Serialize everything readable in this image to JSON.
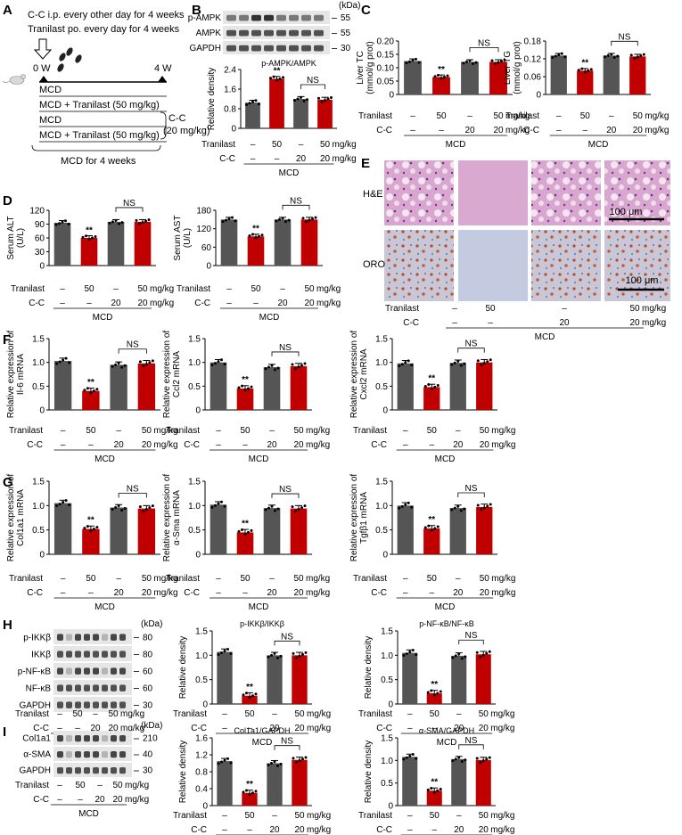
{
  "panel_letters": [
    "A",
    "B",
    "C",
    "D",
    "E",
    "F",
    "G",
    "H",
    "I"
  ],
  "design": {
    "line1": "C-C i.p. every other day for 4 weeks",
    "line2": "Tranilast po. every day for 4 weeks",
    "week0": "0 W",
    "week4": "4 W",
    "groups": [
      "MCD",
      "MCD + Tranilast (50 mg/kg)",
      "MCD",
      "MCD + Tranilast (50 mg/kg)"
    ],
    "cc_label": "C-C",
    "cc_dose": "(20 mg/kg)",
    "footer": "MCD for 4 weeks"
  },
  "common": {
    "tranilast_label": "Tranilast",
    "cc_label": "C-C",
    "tranilast_values": [
      "–",
      "50",
      "–",
      "50"
    ],
    "cc_values": [
      "–",
      "–",
      "20",
      "20"
    ],
    "unit": "mg/kg",
    "model": "MCD",
    "sig": "**",
    "ns": "NS",
    "kda": "(kDa)",
    "bar_colors": [
      "#555555",
      "#c00000",
      "#555555",
      "#c00000"
    ]
  },
  "blots": {
    "B": [
      {
        "name": "p-AMPK",
        "kda": "55"
      },
      {
        "name": "AMPK",
        "kda": "55"
      },
      {
        "name": "GAPDH",
        "kda": "30"
      }
    ],
    "H": [
      {
        "name": "p-IKKβ",
        "kda": "80"
      },
      {
        "name": "IKKβ",
        "kda": "80"
      },
      {
        "name": "p-NF-κB",
        "kda": "60"
      },
      {
        "name": "NF-κB",
        "kda": "60"
      },
      {
        "name": "GAPDH",
        "kda": "30"
      }
    ],
    "I": [
      {
        "name": "Col1a1",
        "kda": "210"
      },
      {
        "name": "α-SMA",
        "kda": "40"
      },
      {
        "name": "GAPDH",
        "kda": "30"
      }
    ]
  },
  "histology": {
    "rows": [
      "H&E",
      "ORO"
    ],
    "scale": "100 μm"
  },
  "chart_data": [
    {
      "id": "B",
      "type": "bar",
      "title": "p-AMPK/AMPK",
      "ylabel": "Relative density",
      "ylim": [
        0,
        2.4
      ],
      "ticks": [
        "0",
        "0.8",
        "1.6",
        "2.4"
      ],
      "values": [
        1.05,
        2.02,
        1.2,
        1.17
      ]
    },
    {
      "id": "C1",
      "type": "bar",
      "title": "",
      "ylabel": "Liver TC (mmol/g prot)",
      "ylim": [
        0,
        0.2
      ],
      "ticks": [
        "0",
        "0.05",
        "0.10",
        "0.15",
        "0.20"
      ],
      "values": [
        0.125,
        0.065,
        0.122,
        0.122
      ]
    },
    {
      "id": "C2",
      "type": "bar",
      "title": "",
      "ylabel": "Liver TG (mmol/g prot)",
      "ylim": [
        0,
        0.18
      ],
      "ticks": [
        "0",
        "0.06",
        "0.12",
        "0.18"
      ],
      "values": [
        0.131,
        0.08,
        0.131,
        0.128
      ]
    },
    {
      "id": "D1",
      "type": "bar",
      "title": "",
      "ylabel": "Serum ALT (U/L)",
      "ylim": [
        0,
        120
      ],
      "ticks": [
        "0",
        "30",
        "60",
        "90",
        "120"
      ],
      "values": [
        93,
        60,
        95,
        95
      ]
    },
    {
      "id": "D2",
      "type": "bar",
      "title": "",
      "ylabel": "Serum AST (U/L)",
      "ylim": [
        0,
        180
      ],
      "ticks": [
        "0",
        "60",
        "120",
        "180"
      ],
      "values": [
        150,
        95,
        150,
        150
      ]
    },
    {
      "id": "F1",
      "type": "bar",
      "title": "",
      "ylabel": "Relative expression of Il-6 mRNA",
      "ylim": [
        0,
        1.5
      ],
      "ticks": [
        "0",
        "0.5",
        "1.0",
        "1.5"
      ],
      "values": [
        1.03,
        0.4,
        0.95,
        0.98
      ]
    },
    {
      "id": "F2",
      "type": "bar",
      "title": "",
      "ylabel": "Relative expression of Ccl2 mRNA",
      "ylim": [
        0,
        1.5
      ],
      "ticks": [
        "0",
        "0.5",
        "1.0",
        "1.5"
      ],
      "values": [
        1.0,
        0.45,
        0.9,
        0.92
      ]
    },
    {
      "id": "F3",
      "type": "bar",
      "title": "",
      "ylabel": "Relative expression of Cxcl2 mRNA",
      "ylim": [
        0,
        1.5
      ],
      "ticks": [
        "0",
        "0.5",
        "1.0",
        "1.5"
      ],
      "values": [
        0.98,
        0.48,
        0.99,
        1.0
      ]
    },
    {
      "id": "G1",
      "type": "bar",
      "title": "",
      "ylabel": "Relative expression of Col1a1 mRNA",
      "ylim": [
        0,
        1.5
      ],
      "ticks": [
        "0",
        "0.5",
        "1.0",
        "1.5"
      ],
      "values": [
        1.05,
        0.52,
        0.96,
        0.94
      ]
    },
    {
      "id": "G2",
      "type": "bar",
      "title": "",
      "ylabel": "Relative expression of α-Sma mRNA",
      "ylim": [
        0,
        1.5
      ],
      "ticks": [
        "0",
        "0.5",
        "1.0",
        "1.5"
      ],
      "values": [
        1.02,
        0.45,
        0.95,
        0.94
      ]
    },
    {
      "id": "G3",
      "type": "bar",
      "title": "",
      "ylabel": "Relative expression of Tgfβ1 mRNA",
      "ylim": [
        0,
        1.5
      ],
      "ticks": [
        "0",
        "0.5",
        "1.0",
        "1.5"
      ],
      "values": [
        1.0,
        0.53,
        0.95,
        0.97
      ]
    },
    {
      "id": "H1",
      "type": "bar",
      "title": "p-IKKβ/IKKβ",
      "ylabel": "Relative density",
      "ylim": [
        0,
        1.5
      ],
      "ticks": [
        "0",
        "0.5",
        "1.0",
        "1.5"
      ],
      "values": [
        1.07,
        0.17,
        1.0,
        1.0
      ]
    },
    {
      "id": "H2",
      "type": "bar",
      "title": "p-NF-κB/NF-κB",
      "ylabel": "Relative density",
      "ylim": [
        0,
        1.5
      ],
      "ticks": [
        "0",
        "0.5",
        "1.0",
        "1.5"
      ],
      "values": [
        1.05,
        0.22,
        0.99,
        1.02
      ]
    },
    {
      "id": "I1",
      "type": "bar",
      "title": "Col1a1/GAPDH",
      "ylabel": "Relative density",
      "ylim": [
        0,
        1.6
      ],
      "ticks": [
        "0",
        "0.4",
        "0.8",
        "1.2",
        "1.6"
      ],
      "values": [
        1.05,
        0.3,
        1.0,
        1.08
      ]
    },
    {
      "id": "I2",
      "type": "bar",
      "title": "α-SMA/GAPDH",
      "ylabel": "Relative density",
      "ylim": [
        0,
        1.5
      ],
      "ticks": [
        "0",
        "0.5",
        "1.0",
        "1.5"
      ],
      "values": [
        1.08,
        0.33,
        1.03,
        1.01
      ]
    }
  ]
}
